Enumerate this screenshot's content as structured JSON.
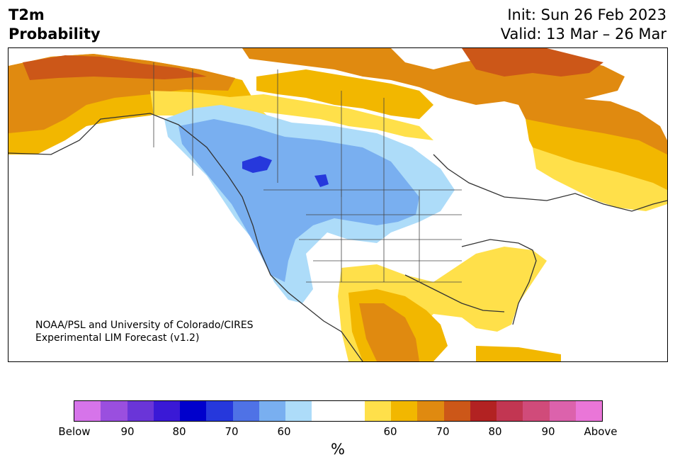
{
  "header": {
    "title_line1": "T2m",
    "title_line2": "Probability",
    "init": "Init: Sun 26 Feb 2023",
    "valid": "Valid: 13 Mar – 26 Mar"
  },
  "credit": {
    "line1": "NOAA/PSL and University of Colorado/CIRES",
    "line2": "Experimental LIM Forecast (v1.2)"
  },
  "colorbar": {
    "colors": [
      "#d674ea",
      "#9a4fdf",
      "#6a35d8",
      "#3a19d6",
      "#0000cc",
      "#2638dc",
      "#4f72e6",
      "#79aff0",
      "#addcf9",
      "#ffffff",
      "#ffffff",
      "#ffe04a",
      "#f2b700",
      "#e08a10",
      "#cc5718",
      "#b22222",
      "#c23652",
      "#d04b7a",
      "#dc62ac",
      "#ea76d8"
    ],
    "labels": [
      "Below",
      "90",
      "80",
      "70",
      "60",
      "60",
      "70",
      "80",
      "90",
      "Above"
    ],
    "unit": "%"
  },
  "map": {
    "region": "North America",
    "fill_colors": {
      "above_70": "#cc5718",
      "above_65": "#e08a10",
      "above_60": "#f2b700",
      "above_55": "#ffe04a",
      "below_55": "#addcf9",
      "below_60": "#79aff0",
      "below_70": "#4f72e6",
      "below_80": "#2638dc",
      "neutral": "#ffffff"
    }
  }
}
